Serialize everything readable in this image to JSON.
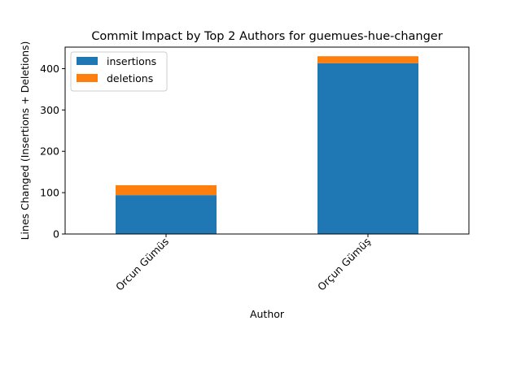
{
  "chart_data": {
    "type": "bar",
    "stacked": true,
    "title": "Commit Impact by Top 2 Authors for guemues-hue-changer",
    "xlabel": "Author",
    "ylabel": "Lines Changed (Insertions + Deletions)",
    "categories": [
      "Orcun Gümüs",
      "Orçun Gümüş"
    ],
    "series": [
      {
        "name": "insertions",
        "color": "#1f77b4",
        "values": [
          94,
          413
        ]
      },
      {
        "name": "deletions",
        "color": "#ff7f0e",
        "values": [
          24,
          17
        ]
      }
    ],
    "ylim": [
      0,
      452
    ],
    "yticks": [
      0,
      100,
      200,
      300,
      400
    ],
    "grid": false,
    "legend": "top-left"
  }
}
